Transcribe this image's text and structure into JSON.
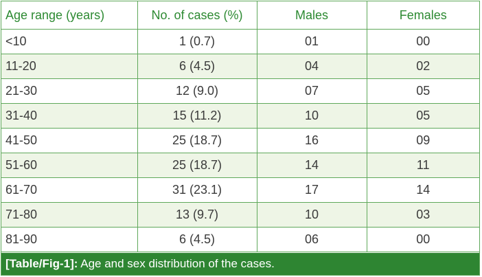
{
  "table": {
    "headers": [
      "Age range (years)",
      "No. of cases (%)",
      "Males",
      "Females"
    ],
    "rows": [
      [
        "<10",
        "1 (0.7)",
        "01",
        "00"
      ],
      [
        "11-20",
        "6 (4.5)",
        "04",
        "02"
      ],
      [
        "21-30",
        "12 (9.0)",
        "07",
        "05"
      ],
      [
        "31-40",
        "15 (11.2)",
        "10",
        "05"
      ],
      [
        "41-50",
        "25 (18.7)",
        "16",
        "09"
      ],
      [
        "51-60",
        "25 (18.7)",
        "14",
        "11"
      ],
      [
        "61-70",
        "31 (23.1)",
        "17",
        "14"
      ],
      [
        "71-80",
        "13 (9.7)",
        "10",
        "03"
      ],
      [
        "81-90",
        "6 (4.5)",
        "06",
        "00"
      ]
    ]
  },
  "caption": {
    "label": "[Table/Fig-1]:",
    "text": " Age and sex distribution of the cases."
  },
  "colors": {
    "header_text": "#2d8a32",
    "border": "#5fa85a",
    "stripe": "#eef5e6",
    "caption_bg": "#2e8532"
  }
}
